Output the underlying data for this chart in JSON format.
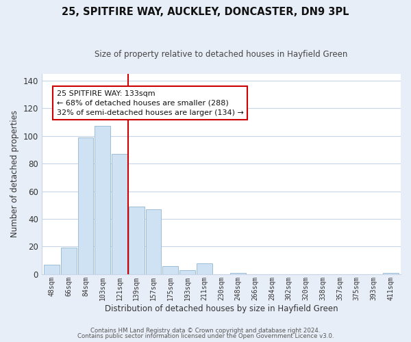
{
  "title": "25, SPITFIRE WAY, AUCKLEY, DONCASTER, DN9 3PL",
  "subtitle": "Size of property relative to detached houses in Hayfield Green",
  "xlabel": "Distribution of detached houses by size in Hayfield Green",
  "ylabel": "Number of detached properties",
  "bar_labels": [
    "48sqm",
    "66sqm",
    "84sqm",
    "103sqm",
    "121sqm",
    "139sqm",
    "157sqm",
    "175sqm",
    "193sqm",
    "211sqm",
    "230sqm",
    "248sqm",
    "266sqm",
    "284sqm",
    "302sqm",
    "320sqm",
    "338sqm",
    "357sqm",
    "375sqm",
    "393sqm",
    "411sqm"
  ],
  "bar_heights": [
    7,
    19,
    99,
    107,
    87,
    49,
    47,
    6,
    3,
    8,
    0,
    1,
    0,
    0,
    0,
    0,
    0,
    0,
    0,
    0,
    1
  ],
  "bar_color": "#cfe2f3",
  "bar_edge_color": "#9dbdd6",
  "vline_x_idx": 4.5,
  "vline_color": "#cc0000",
  "ylim": [
    0,
    145
  ],
  "yticks": [
    0,
    20,
    40,
    60,
    80,
    100,
    120,
    140
  ],
  "annotation_title": "25 SPITFIRE WAY: 133sqm",
  "annotation_line1": "← 68% of detached houses are smaller (288)",
  "annotation_line2": "32% of semi-detached houses are larger (134) →",
  "annotation_box_facecolor": "#ffffff",
  "annotation_box_edgecolor": "#cc0000",
  "footer1": "Contains HM Land Registry data © Crown copyright and database right 2024.",
  "footer2": "Contains public sector information licensed under the Open Government Licence v3.0.",
  "background_color": "#e8eef8",
  "plot_background": "#ffffff",
  "grid_color": "#c8d4e8",
  "title_fontsize": 10.5,
  "subtitle_fontsize": 8.5
}
